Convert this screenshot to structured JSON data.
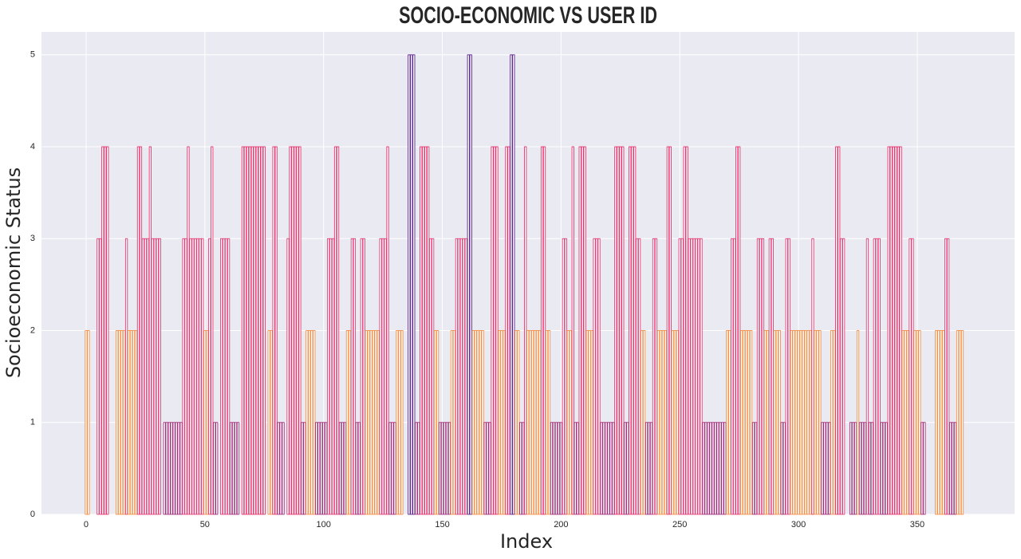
{
  "chart_data": {
    "type": "bar",
    "title": "SOCIO-ECONOMIC VS USER ID",
    "x_label": "Index",
    "y_label": "Socioeconomic Status",
    "palette": [
      "#a1307d",
      "#f3904a",
      "#e0407a",
      "#e8336d",
      "#5c2690"
    ],
    "bar_width": 0.8,
    "xlim": [
      -18.8,
      391
    ],
    "ylim": [
      0,
      5.25
    ],
    "xticks": [
      0,
      50,
      100,
      150,
      200,
      250,
      300,
      350
    ],
    "yticks": [
      0,
      1,
      2,
      3,
      4,
      5
    ],
    "grid": true,
    "x": [
      0,
      1,
      2,
      3,
      4,
      5,
      6,
      7,
      8,
      9,
      10,
      11,
      12,
      13,
      14,
      15,
      16,
      17,
      18,
      19,
      20,
      21,
      22,
      23,
      24,
      25,
      26,
      27,
      28,
      29,
      30,
      31,
      32,
      33,
      34,
      35,
      36,
      37,
      38,
      39,
      40,
      41,
      42,
      43,
      44,
      45,
      46,
      47,
      48,
      49,
      50,
      51,
      52,
      53,
      54,
      55,
      56,
      57,
      58,
      59,
      60,
      61,
      62,
      63,
      64,
      65,
      66,
      67,
      68,
      69,
      70,
      71,
      72,
      73,
      74,
      75,
      76,
      77,
      78,
      79,
      80,
      81,
      82,
      83,
      84,
      85,
      86,
      87,
      88,
      89,
      90,
      91,
      92,
      93,
      94,
      95,
      96,
      97,
      98,
      99,
      100,
      101,
      102,
      103,
      104,
      105,
      106,
      107,
      108,
      109,
      110,
      111,
      112,
      113,
      114,
      115,
      116,
      117,
      118,
      119,
      120,
      121,
      122,
      123,
      124,
      125,
      126,
      127,
      128,
      129,
      130,
      131,
      132,
      133,
      134,
      135,
      136,
      137,
      138,
      139,
      140,
      141,
      142,
      143,
      144,
      145,
      146,
      147,
      148,
      149,
      150,
      151,
      152,
      153,
      154,
      155,
      156,
      157,
      158,
      159,
      160,
      161,
      162,
      163,
      164,
      165,
      166,
      167,
      168,
      169,
      170,
      171,
      172,
      173,
      174,
      175,
      176,
      177,
      178,
      179,
      180,
      181,
      182,
      183,
      184,
      185,
      186,
      187,
      188,
      189,
      190,
      191,
      192,
      193,
      194,
      195,
      196,
      197,
      198,
      199,
      200,
      201,
      202,
      203,
      204,
      205,
      206,
      207,
      208,
      209,
      210,
      211,
      212,
      213,
      214,
      215,
      216,
      217,
      218,
      219,
      220,
      221,
      222,
      223,
      224,
      225,
      226,
      227,
      228,
      229,
      230,
      231,
      232,
      233,
      234,
      235,
      236,
      237,
      238,
      239,
      240,
      241,
      242,
      243,
      244,
      245,
      246,
      247,
      248,
      249,
      250,
      251,
      252,
      253,
      254,
      255,
      256,
      257,
      258,
      259,
      260,
      261,
      262,
      263,
      264,
      265,
      266,
      267,
      268,
      269,
      270,
      271,
      272,
      273,
      274,
      275,
      276,
      277,
      278,
      279,
      280,
      281,
      282,
      283,
      284,
      285,
      286,
      287,
      288,
      289,
      290,
      291,
      292,
      293,
      294,
      295,
      296,
      297,
      298,
      299,
      300,
      301,
      302,
      303,
      304,
      305,
      306,
      307,
      308,
      309,
      310,
      311,
      312,
      313,
      314,
      315,
      316,
      317,
      318,
      319,
      320,
      321,
      322,
      323,
      324,
      325,
      326,
      327,
      328,
      329,
      330,
      331,
      332,
      333,
      334,
      335,
      336,
      337,
      338,
      339,
      340,
      341,
      342,
      343,
      344,
      345,
      346,
      347,
      348,
      349,
      350,
      351,
      352,
      353,
      354,
      355,
      356,
      357,
      358,
      359,
      360,
      361,
      362,
      363,
      364,
      365,
      366,
      367,
      368,
      369
    ],
    "values": [
      2,
      2,
      0,
      0,
      0,
      3,
      3,
      4,
      4,
      4,
      0,
      0,
      0,
      2,
      2,
      2,
      2,
      3,
      2,
      2,
      2,
      2,
      4,
      4,
      3,
      3,
      3,
      4,
      3,
      3,
      3,
      3,
      0,
      1,
      1,
      1,
      1,
      1,
      1,
      1,
      1,
      3,
      3,
      4,
      3,
      3,
      3,
      3,
      3,
      3,
      2,
      2,
      3,
      4,
      1,
      1,
      0,
      3,
      3,
      3,
      3,
      1,
      1,
      1,
      1,
      0,
      4,
      4,
      4,
      4,
      4,
      4,
      4,
      4,
      4,
      4,
      0,
      2,
      2,
      4,
      4,
      1,
      1,
      1,
      0,
      3,
      4,
      4,
      4,
      4,
      4,
      1,
      1,
      2,
      2,
      2,
      2,
      1,
      1,
      1,
      1,
      1,
      3,
      3,
      3,
      4,
      4,
      1,
      1,
      1,
      2,
      2,
      3,
      3,
      1,
      1,
      3,
      3,
      2,
      2,
      2,
      2,
      2,
      2,
      3,
      3,
      3,
      4,
      1,
      1,
      1,
      2,
      2,
      2,
      0,
      0,
      5,
      5,
      5,
      1,
      1,
      4,
      4,
      4,
      4,
      3,
      3,
      2,
      2,
      1,
      1,
      1,
      1,
      1,
      2,
      2,
      3,
      3,
      3,
      3,
      3,
      5,
      5,
      2,
      2,
      2,
      2,
      2,
      1,
      1,
      1,
      4,
      4,
      4,
      2,
      2,
      2,
      4,
      4,
      5,
      5,
      2,
      2,
      1,
      1,
      4,
      2,
      2,
      2,
      2,
      2,
      2,
      4,
      4,
      2,
      2,
      1,
      1,
      1,
      1,
      1,
      3,
      3,
      2,
      2,
      4,
      1,
      1,
      4,
      4,
      4,
      2,
      2,
      2,
      3,
      3,
      3,
      1,
      1,
      1,
      1,
      1,
      1,
      4,
      4,
      4,
      4,
      1,
      1,
      4,
      4,
      4,
      3,
      3,
      2,
      2,
      1,
      1,
      1,
      3,
      3,
      2,
      2,
      2,
      2,
      4,
      4,
      2,
      2,
      2,
      3,
      3,
      4,
      4,
      3,
      3,
      3,
      3,
      3,
      3,
      1,
      1,
      1,
      1,
      1,
      1,
      1,
      1,
      1,
      1,
      2,
      2,
      3,
      3,
      4,
      4,
      2,
      2,
      2,
      2,
      2,
      1,
      1,
      3,
      3,
      3,
      2,
      2,
      3,
      3,
      2,
      2,
      2,
      1,
      1,
      3,
      3,
      2,
      2,
      2,
      2,
      2,
      2,
      2,
      2,
      2,
      3,
      2,
      2,
      2,
      1,
      1,
      1,
      1,
      2,
      2,
      4,
      4,
      3,
      3,
      0,
      0,
      1,
      1,
      1,
      2,
      1,
      1,
      1,
      3,
      1,
      1,
      3,
      3,
      3,
      1,
      1,
      1,
      4,
      4,
      4,
      4,
      4,
      4,
      2,
      2,
      2,
      3,
      3,
      2,
      2,
      2,
      1,
      1,
      0,
      0,
      0,
      0,
      2,
      2,
      2,
      2,
      3,
      3,
      1,
      1,
      1,
      2,
      2,
      2
    ]
  }
}
